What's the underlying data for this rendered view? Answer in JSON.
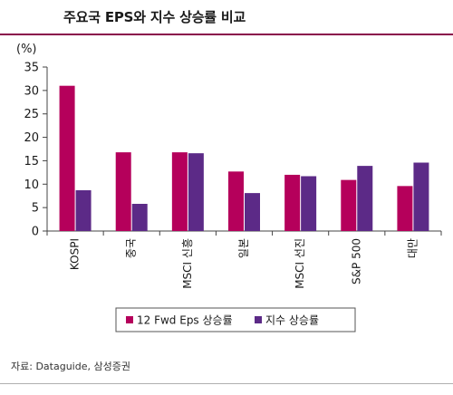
{
  "title": "주요국 EPS와 지수 상승률 비교",
  "source": "자료: Dataguide, 삼성증권",
  "colors": {
    "series1": "#b5005b",
    "series2": "#5c2a87",
    "rule": "#8a0a4a"
  },
  "chart_data": {
    "type": "bar",
    "unit": "(%)",
    "categories": [
      "KOSPI",
      "중국",
      "MSCI 신흥",
      "일본",
      "MSCI 선진",
      "S&P 500",
      "대만"
    ],
    "series": [
      {
        "name": "12 Fwd Eps 상승률",
        "values": [
          31.0,
          16.8,
          16.8,
          12.7,
          12.0,
          10.9,
          9.6
        ]
      },
      {
        "name": "지수 상승률",
        "values": [
          8.7,
          5.8,
          16.6,
          8.1,
          11.7,
          13.9,
          14.6
        ]
      }
    ],
    "ylim": [
      0,
      35
    ],
    "yticks": [
      0,
      5,
      10,
      15,
      20,
      25,
      30,
      35
    ],
    "legend_position": "bottom",
    "grid": false
  }
}
